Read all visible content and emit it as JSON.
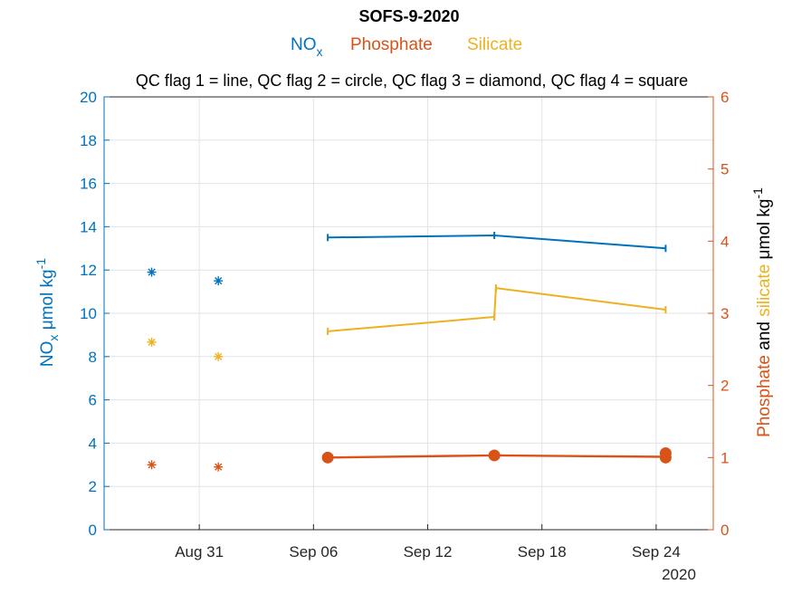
{
  "chart_data": {
    "type": "line",
    "title": "SOFS-9-2020",
    "subtitle": "QC flag 1 = line, QC flag 2 = circle, QC flag 3 = diamond, QC flag 4 = square",
    "legend": {
      "placement": "top",
      "entries": [
        {
          "label": "NO",
          "sub": "x",
          "color": "#0072BD"
        },
        {
          "label": "Phosphate",
          "color": "#D95319"
        },
        {
          "label": "Silicate",
          "color": "#EDB120"
        }
      ]
    },
    "x_axis": {
      "type": "date",
      "range": [
        "2020-08-26",
        "2020-09-27"
      ],
      "ticks": [
        "2020-08-31",
        "2020-09-06",
        "2020-09-12",
        "2020-09-18",
        "2020-09-24"
      ],
      "tick_labels": [
        "Aug 31",
        "Sep 06",
        "Sep 12",
        "Sep 18",
        "Sep 24"
      ],
      "secondary_label": "2020"
    },
    "y_left": {
      "label_pre": "NO",
      "label_sub": "x",
      "label_post": " μmol kg",
      "label_sup": "-1",
      "range": [
        0,
        20
      ],
      "ticks": [
        0,
        2,
        4,
        6,
        8,
        10,
        12,
        14,
        16,
        18,
        20
      ],
      "color": "#0072BD"
    },
    "y_right": {
      "label_part1": "Phosphate",
      "label_part2": " and ",
      "label_part3": "silicate",
      "label_part4": " μmol kg",
      "label_sup": "-1",
      "range": [
        0,
        6
      ],
      "ticks": [
        0,
        1,
        2,
        3,
        4,
        5,
        6
      ],
      "color": "#D95319"
    },
    "grid": true,
    "series": [
      {
        "name": "NO",
        "axis": "left",
        "color": "#0072BD",
        "line": [
          [
            "2020-09-06T18:00",
            13.5
          ],
          [
            "2020-09-15T12:00",
            13.6
          ],
          [
            "2020-09-24T12:00",
            13.0
          ]
        ],
        "asterisks": [
          [
            "2020-08-28T12:00",
            11.9
          ],
          [
            "2020-09-01T00:00",
            11.5
          ]
        ]
      },
      {
        "name": "Silicate",
        "axis": "right",
        "color": "#EDB120",
        "line": [
          [
            "2020-09-06T18:00",
            2.75
          ],
          [
            "2020-09-15T12:00",
            2.95
          ],
          [
            "2020-09-15T14:00",
            3.35
          ],
          [
            "2020-09-24T12:00",
            3.05
          ]
        ],
        "asterisks": [
          [
            "2020-08-28T12:00",
            2.6
          ],
          [
            "2020-09-01T00:00",
            2.4
          ]
        ]
      },
      {
        "name": "Phosphate",
        "axis": "right",
        "color": "#D95319",
        "line": [
          [
            "2020-09-06T18:00",
            1.0
          ],
          [
            "2020-09-15T12:00",
            1.03
          ],
          [
            "2020-09-24T12:00",
            1.01
          ]
        ],
        "circles": [
          [
            "2020-09-06T18:00",
            1.0
          ],
          [
            "2020-09-15T12:00",
            1.03
          ],
          [
            "2020-09-24T12:00",
            1.0
          ],
          [
            "2020-09-24T12:00",
            1.06
          ]
        ],
        "asterisks": [
          [
            "2020-08-28T12:00",
            0.9
          ],
          [
            "2020-09-01T00:00",
            0.87
          ]
        ]
      }
    ]
  }
}
